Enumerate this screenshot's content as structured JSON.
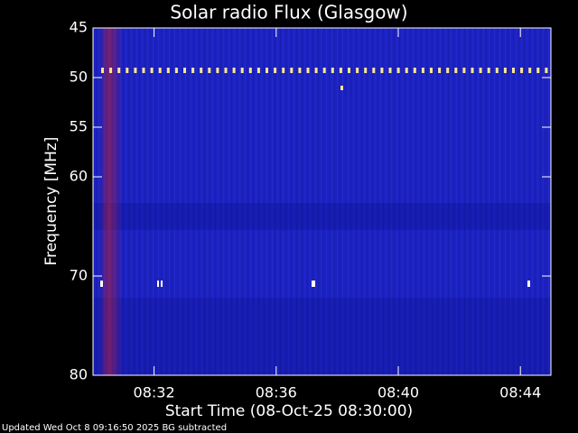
{
  "chart_data": {
    "type": "spectrogram",
    "title": "Solar radio Flux (Glasgow)",
    "xlabel": "Start Time (08-Oct-25 08:30:00)",
    "ylabel": "Frequency [MHz]",
    "footer": "Updated Wed Oct  8 09:16:50 2025   BG subtracted",
    "xlim": [
      510,
      525
    ],
    "xticks": [
      {
        "value": 512,
        "label": "08:32"
      },
      {
        "value": 516,
        "label": "08:36"
      },
      {
        "value": 520,
        "label": "08:40"
      },
      {
        "value": 524,
        "label": "08:44"
      }
    ],
    "ylim": [
      45,
      80
    ],
    "yticks": [
      45,
      50,
      55,
      60,
      70,
      80
    ],
    "color": "#1c22c0"
  }
}
